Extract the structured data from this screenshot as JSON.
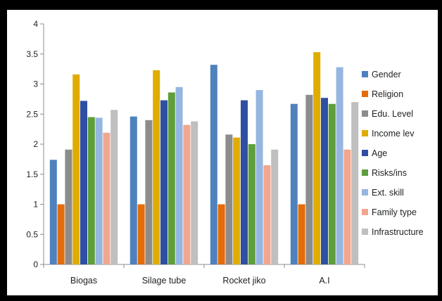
{
  "chart_data": {
    "type": "bar",
    "categories": [
      "Biogas",
      "Silage tube",
      "Rocket jiko",
      "A.I"
    ],
    "series": [
      {
        "name": "Gender",
        "color": "#4f81bd",
        "values": [
          1.74,
          2.46,
          3.32,
          2.67
        ]
      },
      {
        "name": "Religion",
        "color": "#e46c0a",
        "values": [
          1.0,
          1.0,
          1.0,
          1.0
        ]
      },
      {
        "name": "Edu. Level",
        "color": "#8c8c8c",
        "values": [
          1.91,
          2.4,
          2.16,
          2.82
        ]
      },
      {
        "name": "Income lev",
        "color": "#e0ac00",
        "values": [
          3.16,
          3.23,
          2.11,
          3.53
        ]
      },
      {
        "name": "Age",
        "color": "#2e4fa3",
        "values": [
          2.72,
          2.73,
          2.73,
          2.77
        ]
      },
      {
        "name": "Risks/ins",
        "color": "#5e9e3c",
        "values": [
          2.45,
          2.86,
          2.0,
          2.67
        ]
      },
      {
        "name": "Ext. skill",
        "color": "#95b6e0",
        "values": [
          2.44,
          2.95,
          2.9,
          3.28
        ]
      },
      {
        "name": "Family type",
        "color": "#f2a68e",
        "values": [
          2.19,
          2.32,
          1.65,
          1.91
        ]
      },
      {
        "name": "Infrastructure",
        "color": "#bfbfbf",
        "values": [
          2.57,
          2.38,
          1.91,
          2.7
        ]
      }
    ],
    "yticks": [
      "0",
      "0.5",
      "1",
      "1.5",
      "2",
      "2.5",
      "3",
      "3.5",
      "4"
    ],
    "ylim": [
      0,
      4
    ],
    "grid": false,
    "legend_position": "right",
    "title": "",
    "xlabel": "",
    "ylabel": ""
  }
}
